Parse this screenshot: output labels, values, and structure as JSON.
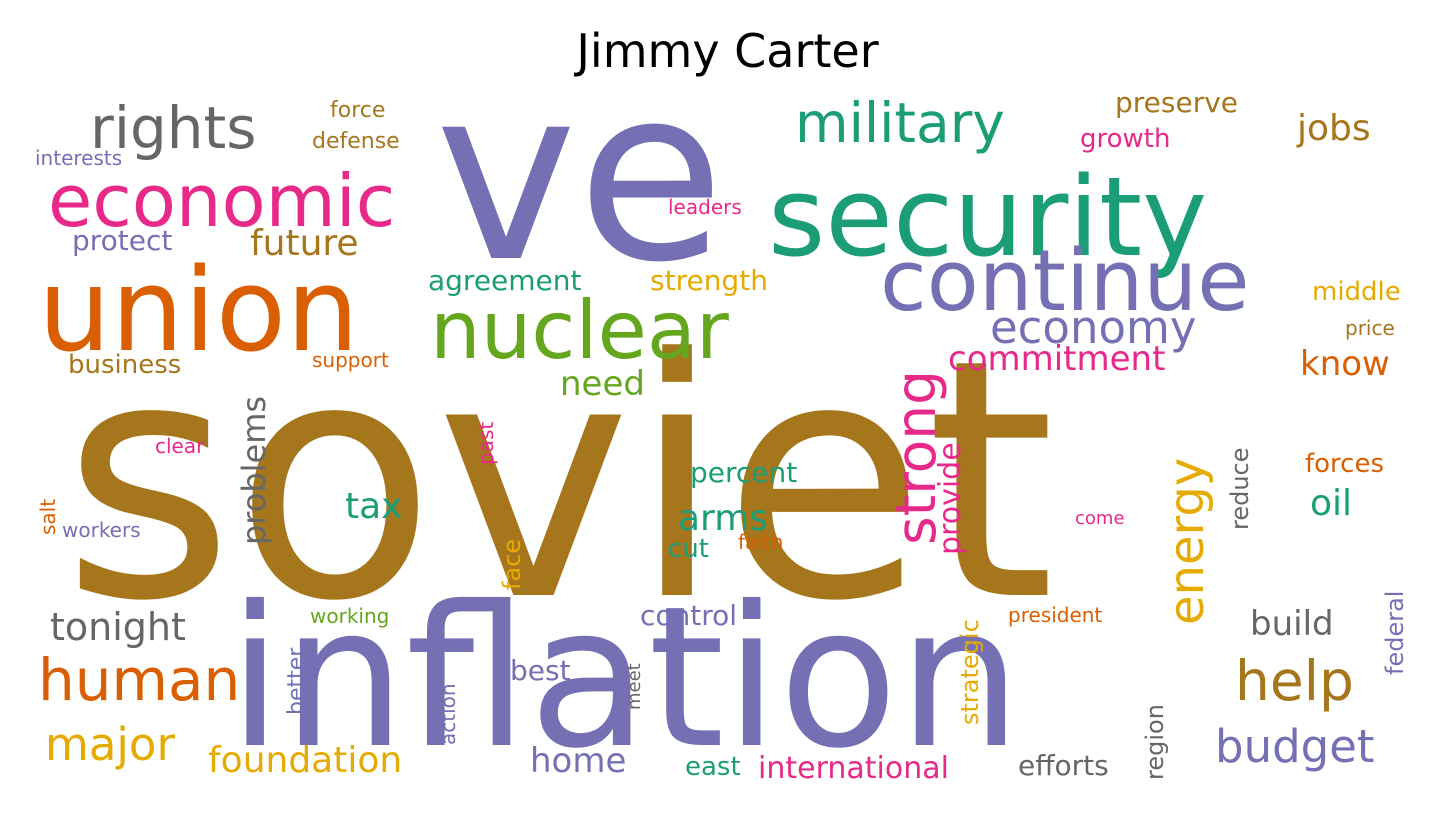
{
  "title": "Jimmy Carter",
  "palette": {
    "brown": "#a6761d",
    "purple": "#7570b3",
    "green": "#1b9e77",
    "orange": "#d95f02",
    "pink": "#e7298a",
    "lime": "#66a61e",
    "yellow": "#e6ab02",
    "gray": "#666666"
  },
  "words": [
    {
      "text": "soviet",
      "color": "#a6761d",
      "rotated": false
    },
    {
      "text": "ve",
      "color": "#7570b3",
      "rotated": false
    },
    {
      "text": "inflation",
      "color": "#7570b3",
      "rotated": false
    },
    {
      "text": "union",
      "color": "#d95f02",
      "rotated": false
    },
    {
      "text": "security",
      "color": "#1b9e77",
      "rotated": false
    },
    {
      "text": "nuclear",
      "color": "#66a61e",
      "rotated": false
    },
    {
      "text": "continue",
      "color": "#7570b3",
      "rotated": false
    },
    {
      "text": "economic",
      "color": "#e7298a",
      "rotated": false
    },
    {
      "text": "rights",
      "color": "#666666",
      "rotated": false
    },
    {
      "text": "military",
      "color": "#1b9e77",
      "rotated": false
    },
    {
      "text": "strong",
      "color": "#e7298a",
      "rotated": true
    },
    {
      "text": "economy",
      "color": "#7570b3",
      "rotated": false
    },
    {
      "text": "energy",
      "color": "#e6ab02",
      "rotated": true
    },
    {
      "text": "human",
      "color": "#d95f02",
      "rotated": false
    },
    {
      "text": "help",
      "color": "#a6761d",
      "rotated": false
    },
    {
      "text": "budget",
      "color": "#7570b3",
      "rotated": false
    },
    {
      "text": "major",
      "color": "#e6ab02",
      "rotated": false
    },
    {
      "text": "jobs",
      "color": "#a6761d",
      "rotated": false
    },
    {
      "text": "future",
      "color": "#a6761d",
      "rotated": false
    },
    {
      "text": "commitment",
      "color": "#e7298a",
      "rotated": false
    },
    {
      "text": "problems",
      "color": "#666666",
      "rotated": true
    },
    {
      "text": "provide",
      "color": "#e7298a",
      "rotated": true
    },
    {
      "text": "tonight",
      "color": "#666666",
      "rotated": false
    },
    {
      "text": "foundation",
      "color": "#e6ab02",
      "rotated": false
    },
    {
      "text": "arms",
      "color": "#1b9e77",
      "rotated": false
    },
    {
      "text": "know",
      "color": "#d95f02",
      "rotated": false
    },
    {
      "text": "oil",
      "color": "#1b9e77",
      "rotated": false
    },
    {
      "text": "tax",
      "color": "#1b9e77",
      "rotated": false
    },
    {
      "text": "need",
      "color": "#66a61e",
      "rotated": false
    },
    {
      "text": "build",
      "color": "#666666",
      "rotated": false
    },
    {
      "text": "home",
      "color": "#7570b3",
      "rotated": false
    },
    {
      "text": "international",
      "color": "#e7298a",
      "rotated": false
    },
    {
      "text": "preserve",
      "color": "#a6761d",
      "rotated": false
    },
    {
      "text": "protect",
      "color": "#7570b3",
      "rotated": false
    },
    {
      "text": "agreement",
      "color": "#1b9e77",
      "rotated": false
    },
    {
      "text": "strength",
      "color": "#e6ab02",
      "rotated": false
    },
    {
      "text": "percent",
      "color": "#1b9e77",
      "rotated": false
    },
    {
      "text": "control",
      "color": "#7570b3",
      "rotated": false
    },
    {
      "text": "efforts",
      "color": "#666666",
      "rotated": false
    },
    {
      "text": "forces",
      "color": "#d95f02",
      "rotated": false
    },
    {
      "text": "business",
      "color": "#a6761d",
      "rotated": false
    },
    {
      "text": "growth",
      "color": "#e7298a",
      "rotated": false
    },
    {
      "text": "middle",
      "color": "#e6ab02",
      "rotated": false
    },
    {
      "text": "cut",
      "color": "#1b9e77",
      "rotated": false
    },
    {
      "text": "best",
      "color": "#7570b3",
      "rotated": false
    },
    {
      "text": "east",
      "color": "#1b9e77",
      "rotated": false
    },
    {
      "text": "strategic",
      "color": "#e6ab02",
      "rotated": true
    },
    {
      "text": "reduce",
      "color": "#666666",
      "rotated": true
    },
    {
      "text": "federal",
      "color": "#7570b3",
      "rotated": true
    },
    {
      "text": "face",
      "color": "#e6ab02",
      "rotated": true
    },
    {
      "text": "region",
      "color": "#666666",
      "rotated": true
    },
    {
      "text": "better",
      "color": "#7570b3",
      "rotated": true
    },
    {
      "text": "force",
      "color": "#a6761d",
      "rotated": false
    },
    {
      "text": "defense",
      "color": "#a6761d",
      "rotated": false
    },
    {
      "text": "interests",
      "color": "#7570b3",
      "rotated": false
    },
    {
      "text": "leaders",
      "color": "#e7298a",
      "rotated": false
    },
    {
      "text": "price",
      "color": "#a6761d",
      "rotated": false
    },
    {
      "text": "support",
      "color": "#d95f02",
      "rotated": false
    },
    {
      "text": "clear",
      "color": "#e7298a",
      "rotated": false
    },
    {
      "text": "past",
      "color": "#e7298a",
      "rotated": true
    },
    {
      "text": "salt",
      "color": "#d95f02",
      "rotated": true
    },
    {
      "text": "workers",
      "color": "#7570b3",
      "rotated": false
    },
    {
      "text": "faith",
      "color": "#d95f02",
      "rotated": false
    },
    {
      "text": "come",
      "color": "#e7298a",
      "rotated": false
    },
    {
      "text": "working",
      "color": "#66a61e",
      "rotated": false
    },
    {
      "text": "president",
      "color": "#d95f02",
      "rotated": false
    },
    {
      "text": "action",
      "color": "#7570b3",
      "rotated": true
    },
    {
      "text": "meet",
      "color": "#666666",
      "rotated": true
    }
  ]
}
